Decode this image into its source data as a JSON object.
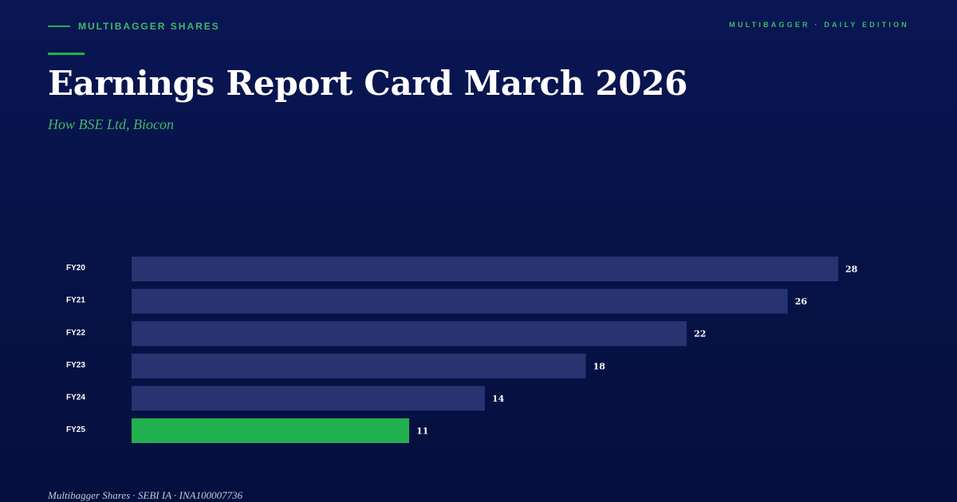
{
  "header": {
    "kicker": "MULTIBAGGER SHARES",
    "edition": "MULTIBAGGER · DAILY EDITION",
    "title": "Earnings Report Card March 2026",
    "subtitle": "How BSE Ltd, Biocon"
  },
  "footer": {
    "text": "Multibagger Shares · SEBI IA · INA100007736"
  },
  "colors": {
    "bar": "#283371",
    "highlight": "#22b04f",
    "label": "#ffffff"
  },
  "chart_data": {
    "type": "bar",
    "orientation": "horizontal",
    "categories": [
      "FY20",
      "FY21",
      "FY22",
      "FY23",
      "FY24",
      "FY25"
    ],
    "values": [
      28,
      26,
      22,
      18,
      14,
      11
    ],
    "highlight_category": "FY25",
    "xlim": [
      0,
      28
    ],
    "grid": false,
    "legend": "none"
  }
}
